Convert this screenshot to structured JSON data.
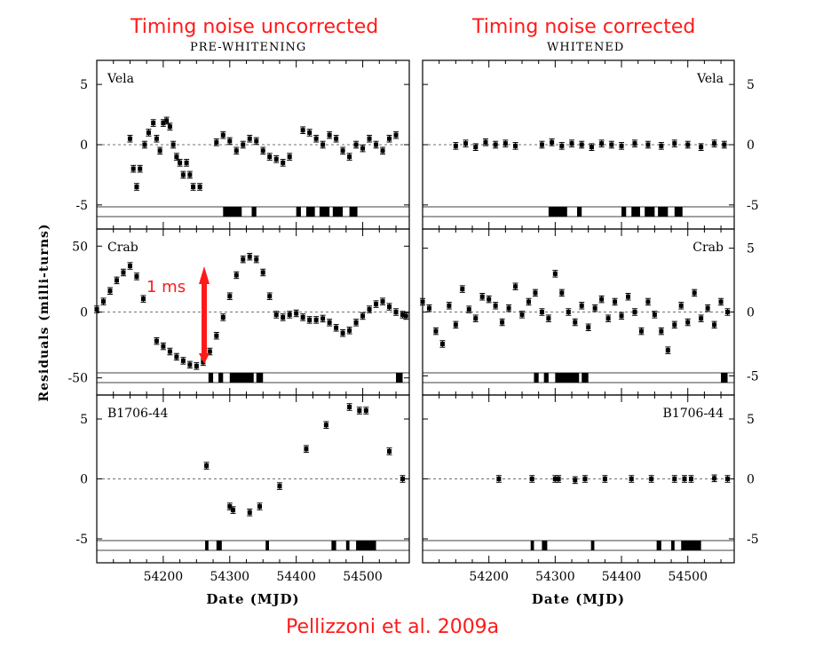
{
  "header": {
    "left_title": "Timing noise uncorrected",
    "left_subtitle": "PRE-WHITENING",
    "right_title": "Timing noise corrected",
    "right_subtitle": "WHITENED"
  },
  "annotation": {
    "arrow_label": "1 ms",
    "arrow_color": "#ff1a1a"
  },
  "citation": "Pellizzoni et al. 2009a",
  "chart_data": [
    {
      "type": "scatter",
      "panel": "Vela, pre-whitening",
      "label": "Vela",
      "xlabel": "",
      "ylabel": "",
      "xlim": [
        54100,
        54570
      ],
      "ylim": [
        -7,
        7
      ],
      "yticks": [
        5,
        0,
        -5
      ],
      "reference_line": 0,
      "x": [
        54150,
        54155,
        54160,
        54165,
        54172,
        54178,
        54185,
        54190,
        54195,
        54200,
        54205,
        54210,
        54215,
        54220,
        54225,
        54230,
        54235,
        54240,
        54245,
        54255,
        54280,
        54290,
        54300,
        54310,
        54320,
        54330,
        54340,
        54350,
        54360,
        54370,
        54380,
        54390,
        54410,
        54420,
        54430,
        54440,
        54450,
        54460,
        54470,
        54480,
        54490,
        54500,
        54510,
        54520,
        54530,
        54540,
        54550
      ],
      "y": [
        0.5,
        -2.0,
        -3.5,
        -2.0,
        0.0,
        1.0,
        1.8,
        0.5,
        -0.5,
        1.8,
        2.0,
        1.5,
        0.0,
        -1.0,
        -1.5,
        -2.5,
        -1.5,
        -2.5,
        -3.5,
        -3.5,
        0.2,
        0.8,
        0.3,
        -0.5,
        0.0,
        0.5,
        0.3,
        -0.5,
        -1.0,
        -1.2,
        -1.5,
        -1.0,
        1.2,
        1.0,
        0.5,
        0.0,
        0.8,
        0.5,
        -0.5,
        -1.0,
        0.0,
        -0.3,
        0.5,
        0.0,
        -0.5,
        0.5,
        0.8
      ],
      "observation_blocks_mjd": [
        [
          54290,
          54318
        ],
        [
          54333,
          54340
        ],
        [
          54400,
          54407
        ],
        [
          54415,
          54428
        ],
        [
          54435,
          54450
        ],
        [
          54455,
          54470
        ],
        [
          54480,
          54492
        ]
      ]
    },
    {
      "type": "scatter",
      "panel": "Vela, whitened",
      "label": "Vela",
      "xlabel": "",
      "ylabel": "",
      "xlim": [
        54100,
        54570
      ],
      "ylim": [
        -7,
        7
      ],
      "yticks": [
        5,
        0,
        -5
      ],
      "reference_line": 0,
      "x": [
        54150,
        54165,
        54180,
        54195,
        54210,
        54225,
        54240,
        54280,
        54295,
        54310,
        54325,
        54340,
        54355,
        54370,
        54385,
        54400,
        54420,
        54440,
        54460,
        54480,
        54500,
        54520,
        54540,
        54555
      ],
      "y": [
        -0.1,
        0.1,
        -0.2,
        0.2,
        0.0,
        0.1,
        -0.1,
        0.0,
        0.2,
        -0.1,
        0.1,
        0.0,
        -0.2,
        0.1,
        0.0,
        -0.1,
        0.1,
        0.0,
        -0.1,
        0.1,
        0.0,
        -0.2,
        0.1,
        0.0
      ],
      "observation_blocks_mjd": [
        [
          54290,
          54318
        ],
        [
          54333,
          54340
        ],
        [
          54400,
          54407
        ],
        [
          54415,
          54428
        ],
        [
          54435,
          54450
        ],
        [
          54455,
          54470
        ],
        [
          54480,
          54492
        ]
      ]
    },
    {
      "type": "scatter",
      "panel": "Crab, pre-whitening",
      "label": "Crab",
      "xlabel": "",
      "ylabel": "",
      "xlim": [
        54100,
        54570
      ],
      "ylim": [
        -63,
        63
      ],
      "yticks": [
        50,
        0,
        -50
      ],
      "reference_line": 0,
      "x": [
        54100,
        54110,
        54120,
        54130,
        54140,
        54150,
        54160,
        54170,
        54190,
        54200,
        54210,
        54220,
        54230,
        54240,
        54250,
        54260,
        54270,
        54280,
        54290,
        54300,
        54310,
        54320,
        54330,
        54340,
        54350,
        54360,
        54370,
        54380,
        54390,
        54400,
        54410,
        54420,
        54430,
        54440,
        54450,
        54460,
        54470,
        54480,
        54490,
        54500,
        54510,
        54520,
        54530,
        54540,
        54550,
        54560,
        54565
      ],
      "y": [
        2,
        8,
        16,
        24,
        30,
        35,
        27,
        10,
        -22,
        -26,
        -30,
        -34,
        -37,
        -40,
        -41,
        -38,
        -30,
        -18,
        -4,
        12,
        28,
        40,
        42,
        40,
        30,
        12,
        -2,
        -4,
        -2,
        -1,
        -4,
        -6,
        -6,
        -5,
        -8,
        -12,
        -16,
        -14,
        -8,
        -3,
        2,
        6,
        8,
        4,
        0,
        -2,
        -3
      ],
      "observation_blocks_mjd": [
        [
          54268,
          54275
        ],
        [
          54283,
          54290
        ],
        [
          54300,
          54336
        ],
        [
          54340,
          54350
        ],
        [
          54550,
          54560
        ]
      ]
    },
    {
      "type": "scatter",
      "panel": "Crab, whitened",
      "label": "Crab",
      "xlabel": "",
      "ylabel": "",
      "xlim": [
        54100,
        54570
      ],
      "ylim": [
        -6.5,
        6.5
      ],
      "yticks": [
        5,
        0,
        -5
      ],
      "reference_line": 0,
      "x": [
        54100,
        54110,
        54120,
        54130,
        54140,
        54150,
        54160,
        54170,
        54180,
        54190,
        54200,
        54210,
        54220,
        54230,
        54240,
        54250,
        54260,
        54270,
        54280,
        54290,
        54300,
        54310,
        54320,
        54330,
        54340,
        54350,
        54360,
        54370,
        54380,
        54390,
        54400,
        54410,
        54420,
        54430,
        54440,
        54450,
        54460,
        54470,
        54480,
        54490,
        54500,
        54510,
        54520,
        54530,
        54540,
        54550,
        54560
      ],
      "y": [
        0.8,
        0.3,
        -1.5,
        -2.5,
        0.5,
        -1.0,
        1.8,
        0.2,
        -0.5,
        1.2,
        1.0,
        0.5,
        -0.8,
        0.3,
        2.0,
        -0.2,
        0.8,
        1.5,
        0.0,
        -0.5,
        3.0,
        1.5,
        0.0,
        -0.8,
        0.5,
        -1.2,
        0.3,
        1.0,
        -0.5,
        0.8,
        -0.3,
        1.2,
        0.0,
        -1.5,
        0.8,
        -0.2,
        -1.5,
        -3.0,
        -1.0,
        0.5,
        -0.8,
        1.5,
        -0.5,
        0.3,
        -1.0,
        0.8,
        0.0
      ],
      "observation_blocks_mjd": [
        [
          54268,
          54275
        ],
        [
          54283,
          54290
        ],
        [
          54300,
          54336
        ],
        [
          54340,
          54350
        ],
        [
          54550,
          54560
        ]
      ]
    },
    {
      "type": "scatter",
      "panel": "B1706-44, pre-whitening",
      "label": "B1706-44",
      "xlabel": "Date (MJD)",
      "ylabel": "",
      "xlim": [
        54100,
        54570
      ],
      "ylim": [
        -7,
        7
      ],
      "yticks": [
        5,
        0,
        -5
      ],
      "xticks": [
        54200,
        54300,
        54400,
        54500
      ],
      "reference_line": 0,
      "x": [
        54265,
        54300,
        54305,
        54330,
        54345,
        54375,
        54415,
        54445,
        54480,
        54495,
        54505,
        54540,
        54560
      ],
      "y": [
        1.1,
        -2.3,
        -2.6,
        -2.8,
        -2.3,
        -0.6,
        2.5,
        4.5,
        6.0,
        5.7,
        5.7,
        2.3,
        0.0
      ],
      "observation_blocks_mjd": [
        [
          54263,
          54268
        ],
        [
          54280,
          54288
        ],
        [
          54354,
          54359
        ],
        [
          54453,
          54460
        ],
        [
          54475,
          54480
        ],
        [
          54490,
          54520
        ]
      ]
    },
    {
      "type": "scatter",
      "panel": "B1706-44, whitened",
      "label": "B1706-44",
      "xlabel": "Date (MJD)",
      "ylabel": "",
      "xlim": [
        54100,
        54570
      ],
      "ylim": [
        -7,
        7
      ],
      "yticks": [
        5,
        0,
        -5
      ],
      "xticks": [
        54200,
        54300,
        54400,
        54500
      ],
      "reference_line": 0,
      "x": [
        54215,
        54265,
        54300,
        54305,
        54330,
        54345,
        54375,
        54415,
        54445,
        54480,
        54495,
        54505,
        54540,
        54560
      ],
      "y": [
        0.0,
        0.0,
        0.0,
        0.0,
        -0.1,
        0.0,
        0.0,
        0.0,
        0.0,
        0.0,
        0.0,
        0.0,
        0.05,
        0.0
      ],
      "observation_blocks_mjd": [
        [
          54263,
          54268
        ],
        [
          54280,
          54288
        ],
        [
          54354,
          54359
        ],
        [
          54453,
          54460
        ],
        [
          54475,
          54480
        ],
        [
          54490,
          54520
        ]
      ]
    }
  ],
  "shared_ylabel": "Residuals (milli-turns)"
}
